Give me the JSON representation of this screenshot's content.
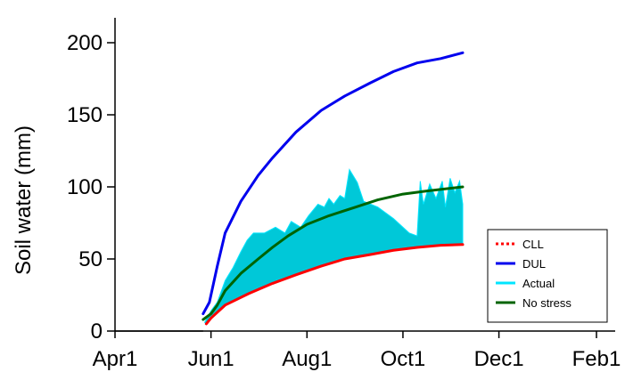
{
  "chart_data": {
    "type": "line",
    "title": "",
    "title_color": "#1a1aff",
    "xlabel": "",
    "ylabel": "Soil water (mm)",
    "ylim": [
      0,
      200
    ],
    "yticks": [
      0,
      50,
      100,
      150,
      200
    ],
    "ytick_labels": [
      "0",
      "50",
      "100",
      "150",
      "200"
    ],
    "xlim": [
      "2017-04-01",
      "2018-02-01"
    ],
    "xticks": [
      "2017-04-01",
      "2017-06-01",
      "2017-08-01",
      "2017-10-01",
      "2017-12-01",
      "2018-02-01"
    ],
    "xtick_labels": [
      "Apr1",
      "Jun1",
      "Aug1",
      "Oct1",
      "Dec1",
      "Feb1"
    ],
    "grid": false,
    "legend_position": "bottom-right",
    "series": [
      {
        "name": "CLL",
        "type": "line",
        "style": "dotted",
        "color": "#ff0000",
        "points": [
          [
            "2017-05-29",
            5
          ],
          [
            "2017-06-01",
            9
          ],
          [
            "2017-06-10",
            18
          ],
          [
            "2017-06-25",
            26
          ],
          [
            "2017-07-10",
            33
          ],
          [
            "2017-07-25",
            39
          ],
          [
            "2017-08-10",
            45
          ],
          [
            "2017-08-25",
            50
          ],
          [
            "2017-09-10",
            53
          ],
          [
            "2017-09-25",
            56
          ],
          [
            "2017-10-10",
            58
          ],
          [
            "2017-10-25",
            59.5
          ],
          [
            "2017-11-08",
            60
          ]
        ]
      },
      {
        "name": "DUL",
        "type": "line",
        "style": "solid",
        "color": "#0000ee",
        "points": [
          [
            "2017-05-27",
            12
          ],
          [
            "2017-05-31",
            20
          ],
          [
            "2017-06-05",
            45
          ],
          [
            "2017-06-10",
            68
          ],
          [
            "2017-06-20",
            90
          ],
          [
            "2017-07-01",
            108
          ],
          [
            "2017-07-10",
            120
          ],
          [
            "2017-07-25",
            138
          ],
          [
            "2017-08-10",
            153
          ],
          [
            "2017-08-25",
            163
          ],
          [
            "2017-09-10",
            172
          ],
          [
            "2017-09-25",
            180
          ],
          [
            "2017-10-10",
            186
          ],
          [
            "2017-10-25",
            189
          ],
          [
            "2017-11-08",
            193
          ]
        ]
      },
      {
        "name": "Actual",
        "type": "area",
        "color": "#00c8d8",
        "edge_color": "#00e5ff",
        "points": [
          [
            "2017-05-28",
            6
          ],
          [
            "2017-06-01",
            14
          ],
          [
            "2017-06-05",
            20
          ],
          [
            "2017-06-10",
            35
          ],
          [
            "2017-06-15",
            44
          ],
          [
            "2017-06-20",
            55
          ],
          [
            "2017-06-24",
            63
          ],
          [
            "2017-06-28",
            68
          ],
          [
            "2017-07-05",
            68
          ],
          [
            "2017-07-12",
            72
          ],
          [
            "2017-07-18",
            68
          ],
          [
            "2017-07-22",
            76
          ],
          [
            "2017-07-28",
            72
          ],
          [
            "2017-08-02",
            80
          ],
          [
            "2017-08-08",
            88
          ],
          [
            "2017-08-12",
            86
          ],
          [
            "2017-08-15",
            92
          ],
          [
            "2017-08-18",
            88
          ],
          [
            "2017-08-22",
            94
          ],
          [
            "2017-08-25",
            92
          ],
          [
            "2017-08-28",
            112
          ],
          [
            "2017-09-02",
            103
          ],
          [
            "2017-09-06",
            90
          ],
          [
            "2017-09-15",
            86
          ],
          [
            "2017-09-25",
            78
          ],
          [
            "2017-10-05",
            68
          ],
          [
            "2017-10-10",
            66
          ],
          [
            "2017-10-12",
            104
          ],
          [
            "2017-10-14",
            88
          ],
          [
            "2017-10-18",
            102
          ],
          [
            "2017-10-22",
            92
          ],
          [
            "2017-10-26",
            104
          ],
          [
            "2017-10-28",
            86
          ],
          [
            "2017-10-31",
            106
          ],
          [
            "2017-11-03",
            96
          ],
          [
            "2017-11-06",
            104
          ],
          [
            "2017-11-08",
            88
          ]
        ]
      },
      {
        "name": "No stress",
        "type": "line",
        "style": "solid",
        "color": "#006400",
        "points": [
          [
            "2017-05-27",
            8
          ],
          [
            "2017-06-01",
            12
          ],
          [
            "2017-06-05",
            18
          ],
          [
            "2017-06-10",
            28
          ],
          [
            "2017-06-20",
            40
          ],
          [
            "2017-07-01",
            50
          ],
          [
            "2017-07-10",
            58
          ],
          [
            "2017-07-20",
            66
          ],
          [
            "2017-08-01",
            74
          ],
          [
            "2017-08-15",
            80
          ],
          [
            "2017-09-01",
            86
          ],
          [
            "2017-09-15",
            91
          ],
          [
            "2017-10-01",
            95
          ],
          [
            "2017-10-15",
            97
          ],
          [
            "2017-11-08",
            100
          ]
        ]
      }
    ]
  }
}
